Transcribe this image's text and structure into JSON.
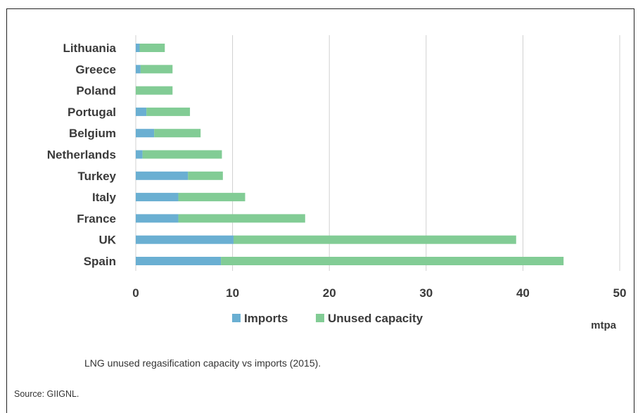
{
  "chart_data": {
    "type": "bar",
    "orientation": "horizontal",
    "stacked": true,
    "categories": [
      "Lithuania",
      "Greece",
      "Poland",
      "Portugal",
      "Belgium",
      "Netherlands",
      "Turkey",
      "Italy",
      "France",
      "UK",
      "Spain"
    ],
    "series": [
      {
        "name": "Imports",
        "color": "#6aafd2",
        "values": [
          0.4,
          0.5,
          0.0,
          1.1,
          1.9,
          0.7,
          5.4,
          4.4,
          4.4,
          10.1,
          8.8
        ]
      },
      {
        "name": "Unused capacity",
        "color": "#82cc95",
        "values": [
          2.6,
          3.3,
          3.8,
          4.5,
          4.8,
          8.2,
          3.6,
          6.9,
          13.1,
          29.2,
          35.4
        ]
      }
    ],
    "xlim": [
      0,
      50
    ],
    "xticks": [
      0,
      10,
      20,
      30,
      40,
      50
    ],
    "unit_label": "mtpa",
    "grid": "vertical",
    "legend_position": "bottom"
  },
  "caption": "LNG unused regasification capacity vs imports (2015).",
  "source": "Source: GIIGNL."
}
